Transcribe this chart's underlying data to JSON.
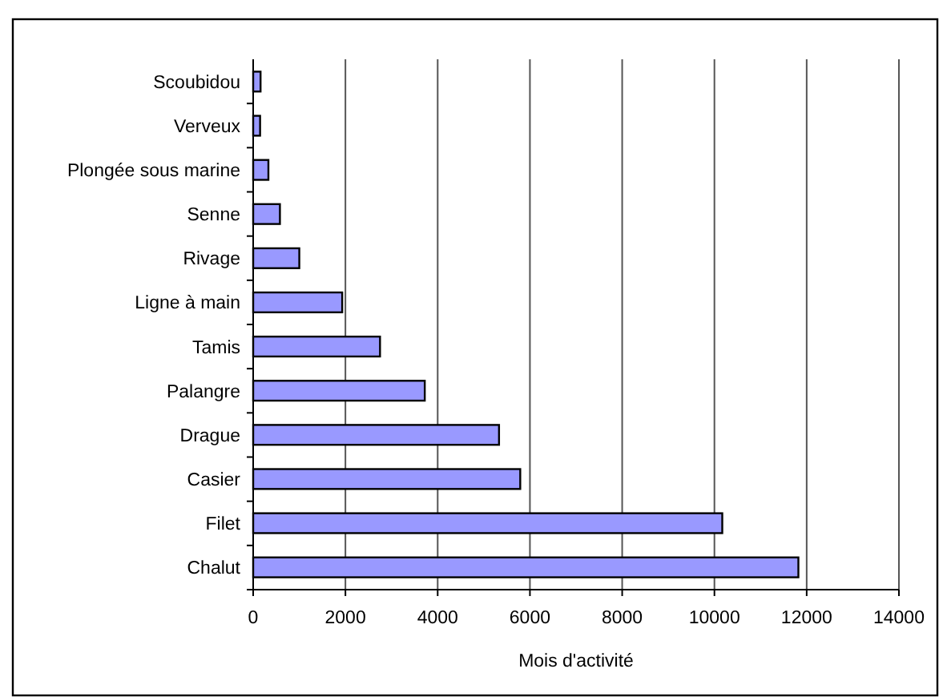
{
  "chart_data": {
    "type": "bar",
    "orientation": "horizontal",
    "categories": [
      "Scoubidou",
      "Verveux",
      "Plongée sous marine",
      "Senne",
      "Rivage",
      "Ligne à main",
      "Tamis",
      "Palangre",
      "Drague",
      "Casier",
      "Filet",
      "Chalut"
    ],
    "values": [
      160,
      150,
      330,
      580,
      1000,
      1930,
      2750,
      3720,
      5330,
      5790,
      10170,
      11820
    ],
    "color": "#9999ff",
    "xlim": [
      0,
      14000
    ],
    "xticks": [
      0,
      2000,
      4000,
      6000,
      8000,
      10000,
      12000,
      14000
    ],
    "xlabel": "Mois d'activité",
    "grid": "x"
  }
}
